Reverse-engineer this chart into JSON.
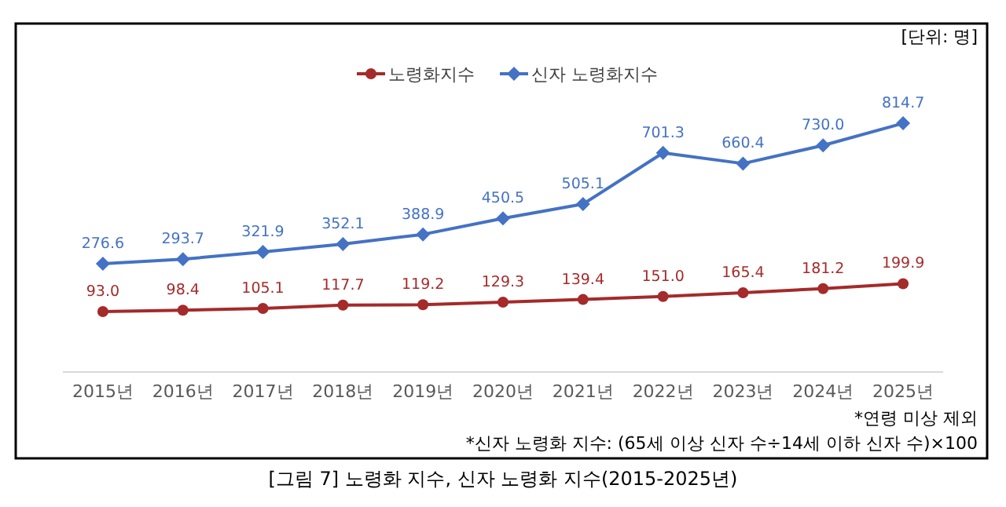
{
  "chart_data": {
    "type": "line",
    "title": "[그림 7] 노령화 지수, 신자 노령화 지수(2015-2025년)",
    "categories": [
      "2015년",
      "2016년",
      "2017년",
      "2018년",
      "2019년",
      "2020년",
      "2021년",
      "2022년",
      "2023년",
      "2024년",
      "2025년"
    ],
    "series": [
      {
        "name": "노령화지수",
        "color": "#a52a2a",
        "marker": "circle",
        "values": [
          93.0,
          98.4,
          105.1,
          117.7,
          119.2,
          129.3,
          139.4,
          151.0,
          165.4,
          181.2,
          199.9
        ],
        "value_labels": [
          "93.0",
          "98.4",
          "105.1",
          "117.7",
          "119.2",
          "129.3",
          "139.4",
          "151.0",
          "165.4",
          "181.2",
          "199.9"
        ]
      },
      {
        "name": "신자 노령화지수",
        "color": "#4472c4",
        "marker": "diamond",
        "values": [
          276.6,
          293.7,
          321.9,
          352.1,
          388.9,
          450.5,
          505.1,
          701.3,
          660.4,
          730.0,
          814.7
        ],
        "value_labels": [
          "276.6",
          "293.7",
          "321.9",
          "352.1",
          "388.9",
          "450.5",
          "505.1",
          "701.3",
          "660.4",
          "730.0",
          "814.7"
        ]
      }
    ],
    "tick_labels": "x",
    "legend": "top",
    "grid": false,
    "annotations": [
      "[단위: 명]",
      "*연령 미상 제외",
      "*신자 노령화 지수: (65세 이상 신자 수÷14세 이하 신자 수)×100"
    ]
  }
}
